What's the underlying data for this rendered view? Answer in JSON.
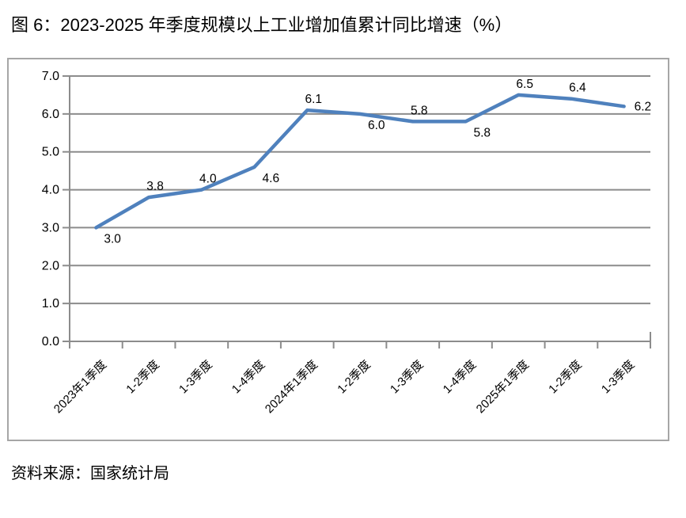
{
  "title": "图 6：2023-2025 年季度规模以上工业增加值累计同比增速（%）",
  "source": "资料来源：国家统计局",
  "colors": {
    "line": "#4F81BD",
    "grid": "#8C8C8C",
    "frame_border": "#A6A6A6",
    "text": "#000000",
    "background": "#FFFFFF"
  },
  "chart_data": {
    "type": "line",
    "title": "图 6：2023-2025 年季度规模以上工业增加值累计同比增速（%）",
    "categories": [
      "2023年1季度",
      "1-2季度",
      "1-3季度",
      "1-4季度",
      "2024年1季度",
      "1-2季度",
      "1-3季度",
      "1-4季度",
      "2025年1季度",
      "1-2季度",
      "1-3季度"
    ],
    "values": [
      3.0,
      3.8,
      4.0,
      4.6,
      6.1,
      6.0,
      5.8,
      5.8,
      6.5,
      6.4,
      6.2
    ],
    "data_labels": [
      "3.0",
      "3.8",
      "4.0",
      "4.6",
      "6.1",
      "6.0",
      "5.8",
      "5.8",
      "6.5",
      "6.4",
      "6.2"
    ],
    "label_positions": [
      "below-right",
      "above",
      "above",
      "below-right",
      "above",
      "below-right",
      "above",
      "below-right",
      "above",
      "above",
      "right"
    ],
    "xlabel": "",
    "ylabel": "",
    "ylim": [
      0.0,
      7.0
    ],
    "ytick_step": 1.0,
    "ytick_labels": [
      "0.0",
      "1.0",
      "2.0",
      "3.0",
      "4.0",
      "5.0",
      "6.0",
      "7.0"
    ],
    "grid": true,
    "legend": "none",
    "x_label_rotation": 45
  }
}
